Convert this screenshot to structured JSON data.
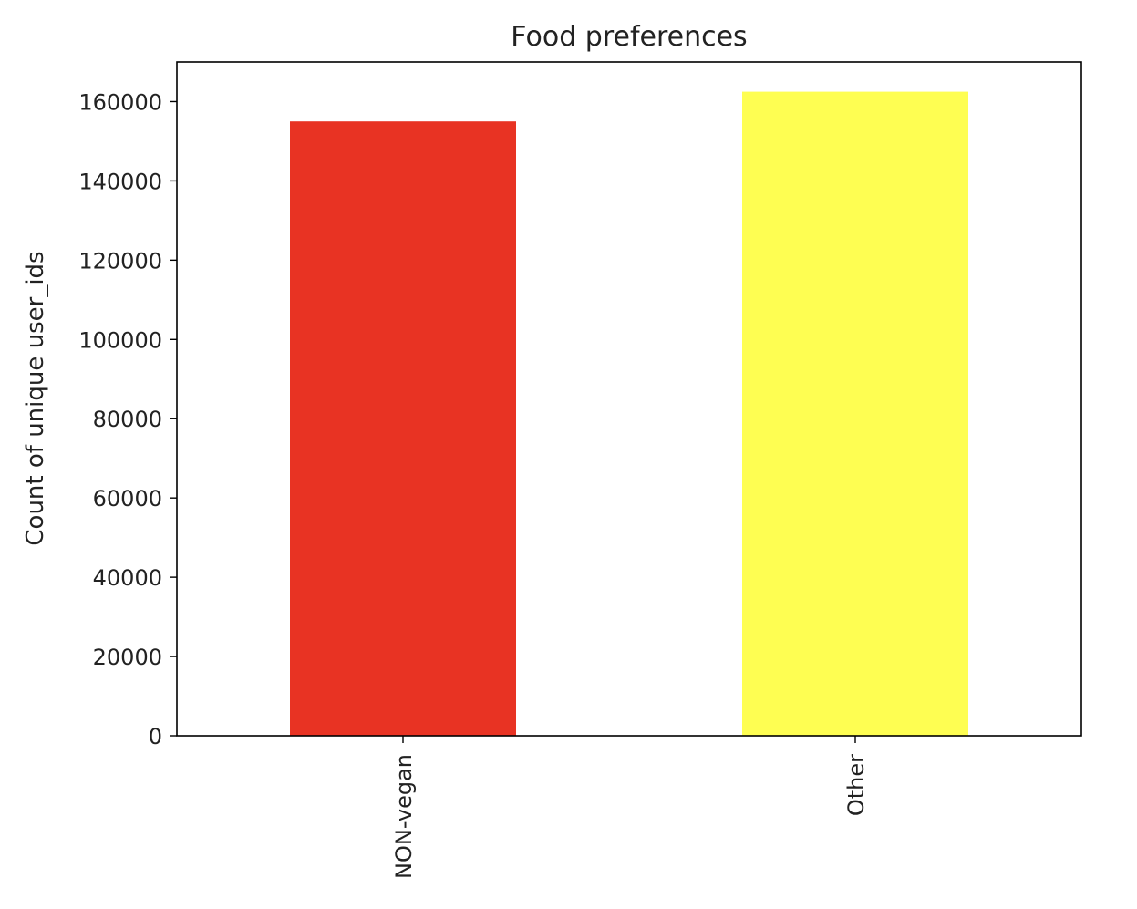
{
  "chart_data": {
    "type": "bar",
    "title": "Food preferences",
    "xlabel": "",
    "ylabel": "Count of unique user_ids",
    "categories": [
      "NON-vegan",
      "Other"
    ],
    "values": [
      155000,
      162500
    ],
    "colors": [
      "#e83323",
      "#fefe52"
    ],
    "ylim": [
      0,
      170000
    ],
    "yticks": [
      0,
      20000,
      40000,
      60000,
      80000,
      100000,
      120000,
      140000,
      160000
    ],
    "ytick_labels": [
      "0",
      "20000",
      "40000",
      "60000",
      "80000",
      "100000",
      "120000",
      "140000",
      "160000"
    ],
    "grid": false,
    "legend": "none"
  }
}
